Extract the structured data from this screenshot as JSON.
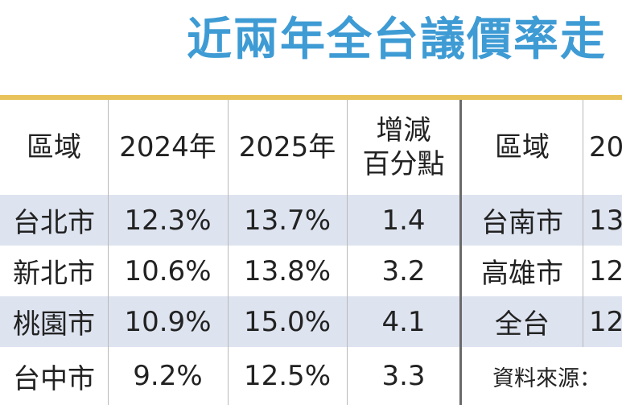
{
  "title": "近兩年全台議價率走",
  "left_table": {
    "headers": {
      "region": "區域",
      "y2024": "2024年",
      "y2025": "2025年",
      "change_line1": "增減",
      "change_line2": "百分點"
    },
    "rows": [
      {
        "region": "台北市",
        "y2024": "12.3%",
        "y2025": "13.7%",
        "change": "1.4"
      },
      {
        "region": "新北市",
        "y2024": "10.6%",
        "y2025": "13.8%",
        "change": "3.2"
      },
      {
        "region": "桃園市",
        "y2024": "10.9%",
        "y2025": "15.0%",
        "change": "4.1"
      },
      {
        "region": "台中市",
        "y2024": "9.2%",
        "y2025": "12.5%",
        "change": "3.3"
      }
    ]
  },
  "right_table": {
    "headers": {
      "region": "區域",
      "y2024": "20"
    },
    "rows": [
      {
        "region": "台南市",
        "y2024": "13"
      },
      {
        "region": "高雄市",
        "y2024": "12"
      },
      {
        "region": "全台",
        "y2024": "12"
      }
    ],
    "source_note": "資料來源："
  },
  "colors": {
    "title": "#3e9bd4",
    "rule": "#e8c25a",
    "row_shade": "#dde3ef"
  }
}
